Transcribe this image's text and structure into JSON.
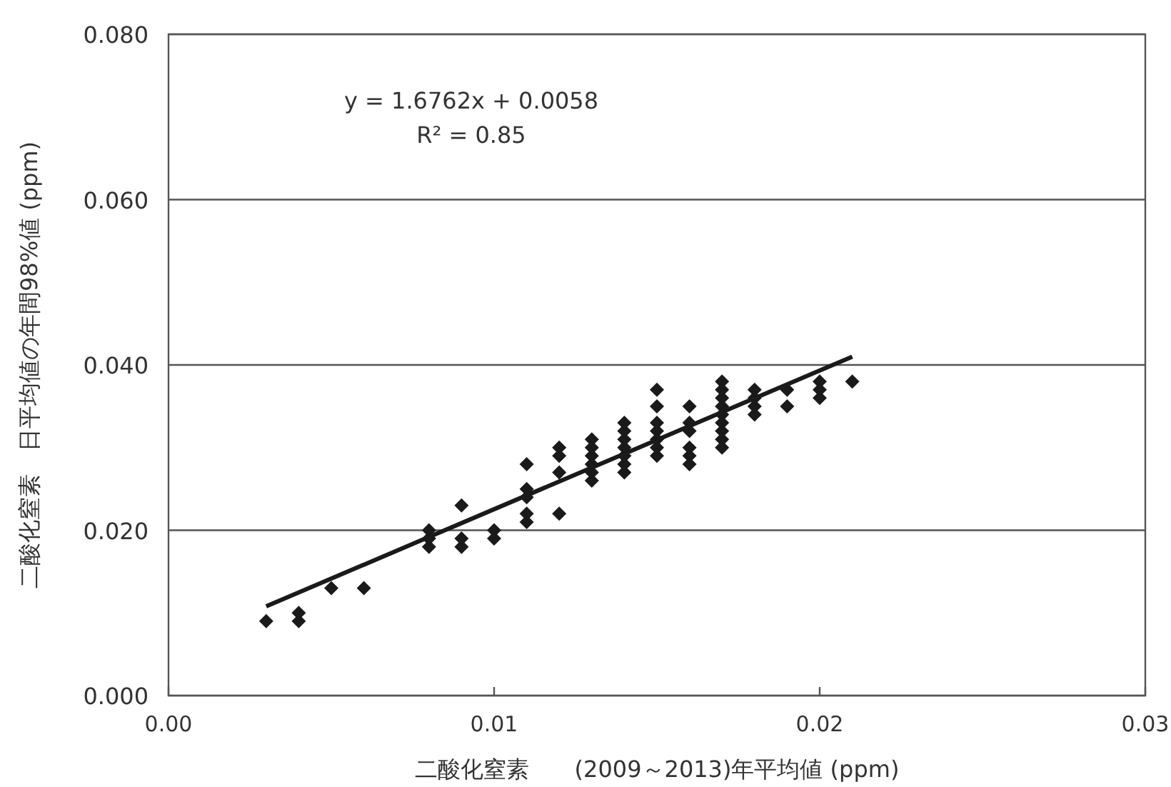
{
  "chart_data": {
    "type": "scatter",
    "xlabel": "二酸化窒素　　(2009～2013)年平均値 (ppm)",
    "ylabel": "二酸化窒素　日平均値の年間98%値 (ppm)",
    "annotations": [
      "y = 1.6762x + 0.0058",
      "R² = 0.85"
    ],
    "xlim": [
      0,
      0.03
    ],
    "xticks": [
      {
        "value": 0,
        "label": "0.00"
      },
      {
        "value": 0.01,
        "label": "0.01"
      },
      {
        "value": 0.02,
        "label": "0.02"
      },
      {
        "value": 0.03,
        "label": "0.03"
      }
    ],
    "ylim": [
      0,
      0.08
    ],
    "yticks": [
      {
        "value": 0,
        "label": "0.000"
      },
      {
        "value": 0.02,
        "label": "0.020"
      },
      {
        "value": 0.04,
        "label": "0.040"
      },
      {
        "value": 0.06,
        "label": "0.060"
      },
      {
        "value": 0.08,
        "label": "0.080"
      }
    ],
    "grid": "y",
    "marker": "diamond",
    "series": [
      {
        "color": "#1a1a1a",
        "x": [
          0.003,
          0.004,
          0.004,
          0.005,
          0.006,
          0.008,
          0.008,
          0.008,
          0.009,
          0.009,
          0.009,
          0.01,
          0.01,
          0.011,
          0.011,
          0.011,
          0.011,
          0.011,
          0.012,
          0.012,
          0.012,
          0.012,
          0.013,
          0.013,
          0.013,
          0.013,
          0.013,
          0.013,
          0.014,
          0.014,
          0.014,
          0.014,
          0.014,
          0.014,
          0.014,
          0.015,
          0.015,
          0.015,
          0.015,
          0.015,
          0.015,
          0.015,
          0.016,
          0.016,
          0.016,
          0.016,
          0.016,
          0.016,
          0.017,
          0.017,
          0.017,
          0.017,
          0.017,
          0.017,
          0.017,
          0.017,
          0.017,
          0.018,
          0.018,
          0.018,
          0.018,
          0.019,
          0.019,
          0.02,
          0.02,
          0.02,
          0.021
        ],
        "values": [
          0.009,
          0.009,
          0.01,
          0.013,
          0.013,
          0.018,
          0.019,
          0.02,
          0.018,
          0.019,
          0.023,
          0.019,
          0.02,
          0.021,
          0.022,
          0.024,
          0.025,
          0.028,
          0.022,
          0.027,
          0.029,
          0.03,
          0.026,
          0.027,
          0.028,
          0.029,
          0.03,
          0.031,
          0.027,
          0.028,
          0.029,
          0.03,
          0.031,
          0.032,
          0.033,
          0.029,
          0.03,
          0.031,
          0.032,
          0.033,
          0.035,
          0.037,
          0.028,
          0.029,
          0.03,
          0.032,
          0.033,
          0.035,
          0.03,
          0.031,
          0.032,
          0.033,
          0.034,
          0.035,
          0.036,
          0.037,
          0.038,
          0.034,
          0.035,
          0.036,
          0.037,
          0.035,
          0.037,
          0.036,
          0.037,
          0.038,
          0.038
        ]
      },
      {
        "type": "line",
        "color": "#1a1a1a",
        "marker": "none",
        "line_style": "solid",
        "x": [
          0.003,
          0.021
        ],
        "values": [
          0.0108,
          0.041
        ]
      }
    ]
  }
}
